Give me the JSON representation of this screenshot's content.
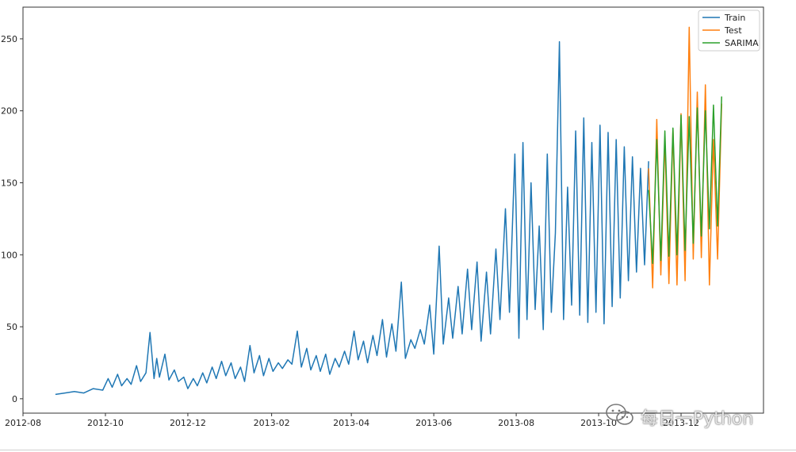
{
  "chart_data": {
    "type": "line",
    "title": "",
    "xlabel": "",
    "ylabel": "",
    "xlim": [
      "2012-08-01",
      "2014-01-31"
    ],
    "ylim": [
      -10,
      272
    ],
    "grid": false,
    "legend_position": "top-right",
    "x_ticks": [
      "2012-08-01",
      "2012-10-01",
      "2012-12-01",
      "2013-02-01",
      "2013-04-01",
      "2013-06-01",
      "2013-08-01",
      "2013-10-01",
      "2013-12-01"
    ],
    "x_tick_labels": [
      "2012-08",
      "2012-10",
      "2012-12",
      "2013-02",
      "2013-04",
      "2013-06",
      "2013-08",
      "2013-10",
      "2013-12"
    ],
    "y_ticks": [
      0,
      50,
      100,
      150,
      200,
      250
    ],
    "y_tick_labels": [
      "0",
      "50",
      "100",
      "150",
      "200",
      "250"
    ],
    "series": [
      {
        "name": "Train",
        "color": "#1f77b4",
        "x": [
          "2012-08-25",
          "2012-09-01",
          "2012-09-08",
          "2012-09-15",
          "2012-09-22",
          "2012-09-29",
          "2012-10-03",
          "2012-10-06",
          "2012-10-10",
          "2012-10-13",
          "2012-10-17",
          "2012-10-20",
          "2012-10-24",
          "2012-10-27",
          "2012-10-31",
          "2012-11-03",
          "2012-11-06",
          "2012-11-08",
          "2012-11-10",
          "2012-11-14",
          "2012-11-17",
          "2012-11-21",
          "2012-11-24",
          "2012-11-28",
          "2012-12-01",
          "2012-12-05",
          "2012-12-08",
          "2012-12-12",
          "2012-12-15",
          "2012-12-19",
          "2012-12-22",
          "2012-12-26",
          "2012-12-29",
          "2013-01-02",
          "2013-01-05",
          "2013-01-09",
          "2013-01-12",
          "2013-01-16",
          "2013-01-19",
          "2013-01-23",
          "2013-01-26",
          "2013-01-30",
          "2013-02-02",
          "2013-02-06",
          "2013-02-09",
          "2013-02-13",
          "2013-02-16",
          "2013-02-20",
          "2013-02-23",
          "2013-02-27",
          "2013-03-02",
          "2013-03-06",
          "2013-03-09",
          "2013-03-13",
          "2013-03-16",
          "2013-03-20",
          "2013-03-23",
          "2013-03-27",
          "2013-03-30",
          "2013-04-03",
          "2013-04-06",
          "2013-04-10",
          "2013-04-13",
          "2013-04-17",
          "2013-04-20",
          "2013-04-24",
          "2013-04-27",
          "2013-05-01",
          "2013-05-04",
          "2013-05-08",
          "2013-05-11",
          "2013-05-15",
          "2013-05-18",
          "2013-05-22",
          "2013-05-25",
          "2013-05-29",
          "2013-06-01",
          "2013-06-05",
          "2013-06-08",
          "2013-06-12",
          "2013-06-15",
          "2013-06-19",
          "2013-06-22",
          "2013-06-26",
          "2013-06-29",
          "2013-07-03",
          "2013-07-06",
          "2013-07-10",
          "2013-07-13",
          "2013-07-17",
          "2013-07-20",
          "2013-07-24",
          "2013-07-27",
          "2013-07-31",
          "2013-08-03",
          "2013-08-06",
          "2013-08-09",
          "2013-08-12",
          "2013-08-15",
          "2013-08-18",
          "2013-08-21",
          "2013-08-24",
          "2013-08-27",
          "2013-08-30",
          "2013-09-02",
          "2013-09-05",
          "2013-09-08",
          "2013-09-11",
          "2013-09-14",
          "2013-09-17",
          "2013-09-20",
          "2013-09-23",
          "2013-09-26",
          "2013-09-29",
          "2013-10-02",
          "2013-10-05",
          "2013-10-08",
          "2013-10-11",
          "2013-10-14",
          "2013-10-17",
          "2013-10-20",
          "2013-10-23",
          "2013-10-26",
          "2013-10-29",
          "2013-11-01",
          "2013-11-04",
          "2013-11-07"
        ],
        "values": [
          3,
          4,
          5,
          4,
          7,
          6,
          14,
          8,
          17,
          9,
          14,
          10,
          23,
          12,
          18,
          46,
          14,
          28,
          15,
          31,
          13,
          20,
          12,
          15,
          7,
          14,
          9,
          18,
          11,
          22,
          14,
          26,
          16,
          25,
          14,
          22,
          12,
          37,
          18,
          30,
          16,
          28,
          19,
          25,
          21,
          27,
          24,
          47,
          22,
          35,
          20,
          30,
          19,
          31,
          17,
          28,
          22,
          33,
          24,
          47,
          27,
          40,
          25,
          44,
          30,
          55,
          29,
          52,
          33,
          81,
          28,
          41,
          35,
          48,
          38,
          65,
          31,
          106,
          38,
          70,
          42,
          78,
          45,
          90,
          48,
          95,
          40,
          88,
          45,
          104,
          55,
          132,
          60,
          170,
          42,
          178,
          55,
          150,
          62,
          120,
          48,
          170,
          60,
          115,
          248,
          55,
          147,
          65,
          186,
          58,
          195,
          53,
          178,
          60,
          190,
          52,
          185,
          64,
          180,
          70,
          175,
          82,
          168,
          88,
          160,
          93,
          165
        ]
      },
      {
        "name": "Test",
        "color": "#ff7f0e",
        "x": [
          "2013-11-07",
          "2013-11-10",
          "2013-11-13",
          "2013-11-16",
          "2013-11-19",
          "2013-11-22",
          "2013-11-25",
          "2013-11-28",
          "2013-12-01",
          "2013-12-04",
          "2013-12-07",
          "2013-12-10",
          "2013-12-13",
          "2013-12-16",
          "2013-12-19",
          "2013-12-22",
          "2013-12-25",
          "2013-12-28",
          "2013-12-31"
        ],
        "values": [
          160,
          77,
          194,
          86,
          180,
          80,
          187,
          79,
          198,
          82,
          258,
          97,
          213,
          98,
          218,
          79,
          180,
          97,
          205
        ]
      },
      {
        "name": "SARIMA",
        "color": "#2ca02c",
        "x": [
          "2013-11-07",
          "2013-11-10",
          "2013-11-13",
          "2013-11-16",
          "2013-11-19",
          "2013-11-22",
          "2013-11-25",
          "2013-11-28",
          "2013-12-01",
          "2013-12-04",
          "2013-12-07",
          "2013-12-10",
          "2013-12-13",
          "2013-12-16",
          "2013-12-19",
          "2013-12-22",
          "2013-12-25",
          "2013-12-28",
          "2013-12-31"
        ],
        "values": [
          145,
          94,
          180,
          96,
          186,
          99,
          188,
          100,
          197,
          103,
          196,
          108,
          202,
          113,
          200,
          118,
          204,
          120,
          210
        ]
      }
    ]
  },
  "watermark": {
    "icon": "wechat-icon",
    "text": "每日一Python"
  }
}
